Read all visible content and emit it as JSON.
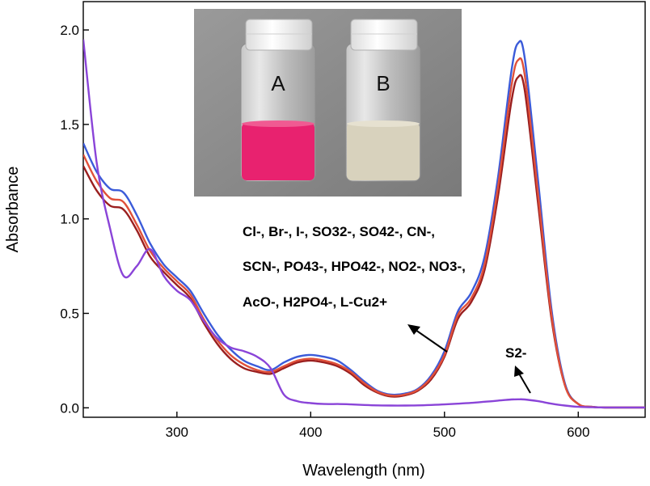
{
  "chart_data": {
    "type": "line",
    "xlabel": "Wavelength (nm)",
    "ylabel": "Absorbance",
    "xlim": [
      230,
      650
    ],
    "ylim": [
      -0.05,
      2.15
    ],
    "xticks": [
      300,
      400,
      500,
      600
    ],
    "yticks": [
      0.0,
      0.5,
      1.0,
      1.5,
      2.0
    ],
    "ytick_labels": [
      "0.0",
      "0.5",
      "1.0",
      "1.5",
      "2.0"
    ],
    "grid": false,
    "series": [
      {
        "color": "#3b5bd9",
        "x": [
          230,
          240,
          250,
          260,
          270,
          280,
          290,
          300,
          310,
          320,
          330,
          340,
          350,
          360,
          370,
          380,
          390,
          400,
          410,
          420,
          430,
          440,
          450,
          460,
          470,
          480,
          490,
          500,
          510,
          520,
          530,
          540,
          550,
          555,
          560,
          570,
          580,
          590,
          600,
          610,
          620,
          630,
          640,
          650
        ],
        "y": [
          1.4,
          1.25,
          1.16,
          1.14,
          1.02,
          0.87,
          0.76,
          0.69,
          0.62,
          0.5,
          0.39,
          0.31,
          0.25,
          0.22,
          0.2,
          0.24,
          0.27,
          0.28,
          0.27,
          0.25,
          0.2,
          0.14,
          0.09,
          0.07,
          0.075,
          0.1,
          0.17,
          0.3,
          0.51,
          0.61,
          0.8,
          1.22,
          1.78,
          1.93,
          1.85,
          1.2,
          0.52,
          0.13,
          0.02,
          0.005,
          0.002,
          0.002,
          0.002,
          0.002
        ]
      },
      {
        "color": "#9a1f1f",
        "x": [
          230,
          240,
          250,
          260,
          270,
          280,
          290,
          300,
          310,
          320,
          330,
          340,
          350,
          360,
          370,
          380,
          390,
          400,
          410,
          420,
          430,
          440,
          450,
          460,
          470,
          480,
          490,
          500,
          510,
          520,
          530,
          540,
          550,
          555,
          560,
          570,
          580,
          590,
          600,
          610,
          620,
          630,
          640,
          650
        ],
        "y": [
          1.28,
          1.15,
          1.07,
          1.05,
          0.94,
          0.8,
          0.72,
          0.65,
          0.58,
          0.45,
          0.34,
          0.26,
          0.21,
          0.19,
          0.18,
          0.21,
          0.24,
          0.25,
          0.24,
          0.22,
          0.18,
          0.12,
          0.08,
          0.06,
          0.065,
          0.09,
          0.15,
          0.27,
          0.47,
          0.56,
          0.73,
          1.12,
          1.62,
          1.75,
          1.68,
          1.08,
          0.47,
          0.12,
          0.02,
          0.005,
          0.002,
          0.002,
          0.002,
          0.002
        ]
      },
      {
        "color": "#e0503a",
        "x": [
          230,
          240,
          250,
          260,
          270,
          280,
          290,
          300,
          310,
          320,
          330,
          340,
          350,
          360,
          370,
          380,
          390,
          400,
          410,
          420,
          430,
          440,
          450,
          460,
          470,
          480,
          490,
          500,
          510,
          520,
          530,
          540,
          550,
          555,
          560,
          570,
          580,
          590,
          600,
          610,
          620,
          630,
          640,
          650
        ],
        "y": [
          1.34,
          1.2,
          1.11,
          1.09,
          0.97,
          0.83,
          0.74,
          0.67,
          0.6,
          0.47,
          0.36,
          0.28,
          0.23,
          0.2,
          0.19,
          0.22,
          0.25,
          0.26,
          0.25,
          0.23,
          0.19,
          0.13,
          0.085,
          0.065,
          0.07,
          0.095,
          0.16,
          0.28,
          0.49,
          0.58,
          0.76,
          1.17,
          1.7,
          1.84,
          1.76,
          1.13,
          0.49,
          0.12,
          0.02,
          0.005,
          0.002,
          0.002,
          0.002,
          0.002
        ]
      },
      {
        "color": "#8a44d8",
        "x": [
          230,
          240,
          250,
          260,
          270,
          280,
          290,
          300,
          310,
          320,
          330,
          340,
          350,
          360,
          370,
          380,
          390,
          400,
          410,
          420,
          430,
          440,
          450,
          460,
          470,
          480,
          490,
          500,
          510,
          520,
          530,
          540,
          550,
          555,
          560,
          570,
          580,
          590,
          600,
          610,
          620,
          630,
          640,
          650
        ],
        "y": [
          1.95,
          1.3,
          0.95,
          0.7,
          0.75,
          0.84,
          0.7,
          0.62,
          0.57,
          0.46,
          0.37,
          0.32,
          0.3,
          0.27,
          0.21,
          0.07,
          0.035,
          0.025,
          0.02,
          0.02,
          0.018,
          0.015,
          0.013,
          0.012,
          0.012,
          0.013,
          0.015,
          0.018,
          0.022,
          0.026,
          0.032,
          0.038,
          0.044,
          0.045,
          0.044,
          0.035,
          0.022,
          0.012,
          0.005,
          0.003,
          0.002,
          0.002,
          0.002,
          0.002
        ]
      }
    ],
    "annotations": {
      "anions_line1": "Cl-, Br-, I-, SO32-, SO42-, CN-,",
      "anions_line2": "SCN-, PO43-, HPO42-, NO2-, NO3-,",
      "anions_line3": "AcO-, H2PO4-, L-Cu2+",
      "sulfide_label": "S2-"
    },
    "inset": {
      "vial_a_label": "A",
      "vial_b_label": "B",
      "vial_a_color": "#e8226f",
      "vial_b_color": "#d8d2bd"
    }
  }
}
